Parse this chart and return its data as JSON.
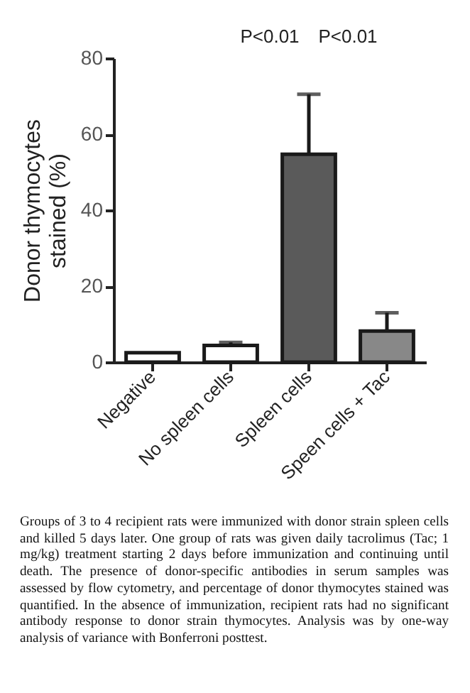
{
  "chart_data": {
    "type": "bar",
    "ylabel": "Donor thymocytes stained (%)",
    "categories": [
      "Negative",
      "No spleen cells",
      "Spleen cells",
      "Speen cells + Tac"
    ],
    "values": [
      2.5,
      4.4,
      54.7,
      8.2
    ],
    "errors": [
      null,
      0.8,
      15.8,
      4.8
    ],
    "colors": [
      "#ffffff",
      "#ffffff",
      "#5a5a5a",
      "#888888"
    ],
    "ylim": [
      0,
      80
    ],
    "yticks": [
      0,
      20,
      40,
      60,
      80
    ],
    "grid": false,
    "legend": false,
    "annotations": [
      "P<0.01",
      "P<0.01",
      "Groups of 3 to 4 recipient rats were immunized with donor strain spleen cells and killed 5 days later. One group of rats was given daily tacrolimus (Tac; 1 mg/kg) treatment starting 2 days before immunization and continuing until death. The presence of donor-specific antibodies in serum samples was assessed by flow cytometry, and percentage of donor thymocytes stained was quantified. In the absence of immunization, recipient rats had no significant antibody response to donor strain thymocytes. Analysis was by one-way analysis of variance with Bonferroni posttest."
    ]
  }
}
